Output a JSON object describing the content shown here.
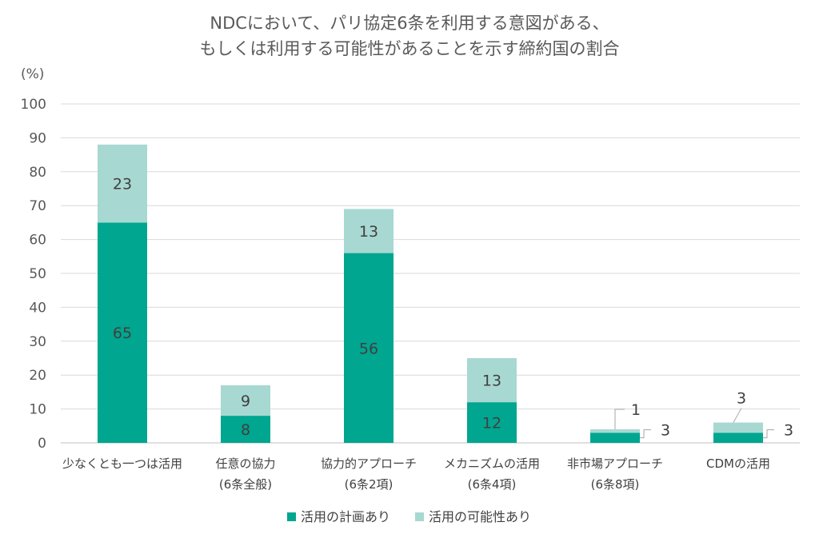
{
  "chart_data": {
    "type": "bar",
    "stacked": true,
    "title_lines": [
      "NDCにおいて、パリ協定6条を利用する意図がある、",
      "もしくは利用する可能性があることを示す締約国の割合"
    ],
    "unit_label": "(%)",
    "ylim": [
      0,
      100
    ],
    "yticks": [
      0,
      10,
      20,
      30,
      40,
      50,
      60,
      70,
      80,
      90,
      100
    ],
    "grid": true,
    "categories": [
      [
        "少なくとも一つは活用"
      ],
      [
        "任意の協力",
        "(6条全般)"
      ],
      [
        "協力的アプローチ",
        "(6条2項)"
      ],
      [
        "メカニズムの活用",
        "(6条4項)"
      ],
      [
        "非市場アプローチ",
        "(6条8項)"
      ],
      [
        "CDMの活用"
      ]
    ],
    "series": [
      {
        "name": "活用の計画あり",
        "color": "#00a68f",
        "values": [
          65,
          8,
          56,
          12,
          3,
          3
        ]
      },
      {
        "name": "活用の可能性あり",
        "color": "#a8d8d2",
        "values": [
          23,
          9,
          13,
          13,
          1,
          3
        ]
      }
    ],
    "legend_position": "bottom"
  }
}
